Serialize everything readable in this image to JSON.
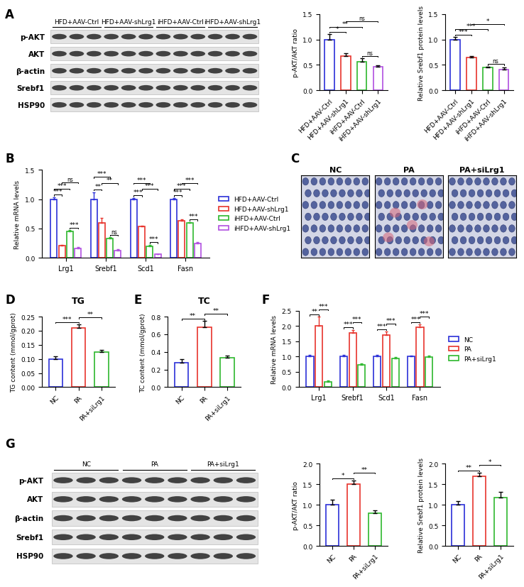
{
  "panel_labels": [
    "A",
    "B",
    "C",
    "D",
    "E",
    "F",
    "G"
  ],
  "blots": [
    {
      "groups": [
        "HFD+AAV-Ctrl",
        "HFD+AAV-shLrg1",
        "iHFD+AAV-Ctrl",
        "iHFD+AAV-shLrg1"
      ],
      "lanes_per_group": 3,
      "rows": [
        "p-AKT",
        "AKT",
        "β-actin",
        "Srebf1",
        "HSP90"
      ]
    },
    {
      "groups": [
        "NC",
        "PA",
        "PA+siLrg1"
      ],
      "lanes_per_group": 3,
      "rows": [
        "p-AKT",
        "AKT",
        "β-actin",
        "Srebf1",
        "HSP90"
      ]
    }
  ],
  "images": {
    "labels": [
      "NC",
      "PA",
      "PA+siLrg1"
    ]
  },
  "chart_data": [
    {
      "type": "bar",
      "ylabel": "p-AKT/AKT ratio",
      "categories": [
        "HFD+AAV-Ctrl",
        "HFD+AAV-shLrg1",
        "iHFD+AAV-Ctrl",
        "iHFD+AAV-shLrg1"
      ],
      "values": [
        1.0,
        0.68,
        0.56,
        0.46
      ],
      "errors": [
        0.1,
        0.05,
        0.07,
        0.03
      ],
      "colors": [
        "#2b30d8",
        "#e8342c",
        "#2eb82e",
        "#b04fe0"
      ],
      "ylim": [
        0.0,
        1.5
      ],
      "yticks": [
        0.0,
        0.5,
        1.0,
        1.5
      ],
      "annotations": [
        {
          "from": 0,
          "to": 1,
          "text": "*"
        },
        {
          "from": 0,
          "to": 2,
          "text": "**"
        },
        {
          "from": 1,
          "to": 3,
          "text": "ns"
        },
        {
          "from": 2,
          "to": 3,
          "text": "ns"
        }
      ]
    },
    {
      "type": "bar",
      "ylabel": "Relative Srebf1 protein levels",
      "categories": [
        "HFD+AAV-Ctrl",
        "HFD+AAV-shLrg1",
        "iHFD+AAV-Ctrl",
        "iHFD+AAV-shLrg1"
      ],
      "values": [
        1.0,
        0.64,
        0.45,
        0.41
      ],
      "errors": [
        0.05,
        0.03,
        0.02,
        0.04
      ],
      "colors": [
        "#2b30d8",
        "#e8342c",
        "#2eb82e",
        "#b04fe0"
      ],
      "ylim": [
        0.0,
        1.5
      ],
      "yticks": [
        0.0,
        0.5,
        1.0,
        1.5
      ],
      "annotations": [
        {
          "from": 0,
          "to": 1,
          "text": "***"
        },
        {
          "from": 0,
          "to": 2,
          "text": "***"
        },
        {
          "from": 1,
          "to": 3,
          "text": "*"
        },
        {
          "from": 2,
          "to": 3,
          "text": "ns"
        }
      ]
    },
    {
      "type": "bar",
      "ylabel": "Relative mRNA levels",
      "categories": [
        "Lrg1",
        "Srebf1",
        "Scd1",
        "Fasn"
      ],
      "series": [
        {
          "name": "HFD+AAV-Ctrl",
          "color": "#2b30d8",
          "values": [
            1.0,
            1.0,
            1.0,
            1.0
          ],
          "errors": [
            0.03,
            0.12,
            0.02,
            0.02
          ]
        },
        {
          "name": "HFD+AAV-shLrg1",
          "color": "#e8342c",
          "values": [
            0.21,
            0.6,
            0.53,
            0.63
          ],
          "errors": [
            0.01,
            0.08,
            0.02,
            0.03
          ]
        },
        {
          "name": "iHFD+AAV-Ctrl",
          "color": "#2eb82e",
          "values": [
            0.45,
            0.33,
            0.2,
            0.59
          ],
          "errors": [
            0.02,
            0.02,
            0.02,
            0.02
          ]
        },
        {
          "name": "iHFD+AAV-shLrg1",
          "color": "#b04fe0",
          "values": [
            0.16,
            0.13,
            0.06,
            0.25
          ],
          "errors": [
            0.02,
            0.02,
            0.01,
            0.02
          ]
        }
      ],
      "legend": "center left",
      "ylim": [
        0.0,
        1.5
      ],
      "yticks": [
        0.0,
        0.5,
        1.0,
        1.5
      ],
      "annotations": [
        {
          "category": 0,
          "from": 0,
          "to": 1,
          "text": "***"
        },
        {
          "category": 0,
          "from": 0,
          "to": 2,
          "text": "***"
        },
        {
          "category": 0,
          "from": 1,
          "to": 3,
          "text": "ns"
        },
        {
          "category": 0,
          "from": 2,
          "to": 3,
          "text": "***"
        },
        {
          "category": 1,
          "from": 0,
          "to": 1,
          "text": "**"
        },
        {
          "category": 1,
          "from": 0,
          "to": 2,
          "text": "***"
        },
        {
          "category": 1,
          "from": 1,
          "to": 3,
          "text": "**"
        },
        {
          "category": 1,
          "from": 2,
          "to": 3,
          "text": "ns"
        },
        {
          "category": 2,
          "from": 0,
          "to": 1,
          "text": "***"
        },
        {
          "category": 2,
          "from": 0,
          "to": 2,
          "text": "***"
        },
        {
          "category": 2,
          "from": 1,
          "to": 3,
          "text": "***"
        },
        {
          "category": 2,
          "from": 2,
          "to": 3,
          "text": "***"
        },
        {
          "category": 3,
          "from": 0,
          "to": 1,
          "text": "***"
        },
        {
          "category": 3,
          "from": 0,
          "to": 2,
          "text": "***"
        },
        {
          "category": 3,
          "from": 1,
          "to": 3,
          "text": "***"
        },
        {
          "category": 3,
          "from": 2,
          "to": 3,
          "text": "***"
        }
      ]
    },
    {
      "type": "bar",
      "title": "TG",
      "ylabel": "TG content (mmol/gprot)",
      "categories": [
        "NC",
        "PA",
        "PA+siLrg1"
      ],
      "values": [
        0.1,
        0.21,
        0.125
      ],
      "errors": [
        0.01,
        0.012,
        0.008
      ],
      "colors": [
        "#2b30d8",
        "#e8342c",
        "#2eb82e"
      ],
      "ylim": [
        0.0,
        0.25
      ],
      "yticks": [
        {
          "value": 0.0,
          "label": "0.00"
        },
        0.05,
        {
          "value": 0.1,
          "label": "0.10"
        },
        0.15,
        {
          "value": 0.2,
          "label": "0.20"
        },
        0.25
      ],
      "annotations": [
        {
          "from": 0,
          "to": 1,
          "text": "***"
        },
        {
          "from": 1,
          "to": 2,
          "text": "**"
        }
      ]
    },
    {
      "type": "bar",
      "title": "TC",
      "ylabel": "TC content (mmol/gprot)",
      "categories": [
        "NC",
        "PA",
        "PA+siLrg1"
      ],
      "values": [
        0.28,
        0.68,
        0.33
      ],
      "errors": [
        0.04,
        0.07,
        0.03
      ],
      "colors": [
        "#2b30d8",
        "#e8342c",
        "#2eb82e"
      ],
      "ylim": [
        0.0,
        0.8
      ],
      "yticks": [
        0.0,
        0.2,
        0.4,
        0.6,
        0.8
      ],
      "annotations": [
        {
          "from": 0,
          "to": 1,
          "text": "**"
        },
        {
          "from": 1,
          "to": 2,
          "text": "**"
        }
      ]
    },
    {
      "type": "bar",
      "ylabel": "Relative mRNA levels",
      "categories": [
        "Lrg1",
        "Srebf1",
        "Scd1",
        "Fasn"
      ],
      "series": [
        {
          "name": "NC",
          "color": "#2b30d8",
          "values": [
            1.0,
            1.0,
            1.0,
            1.0
          ],
          "errors": [
            0.05,
            0.06,
            0.05,
            0.04
          ]
        },
        {
          "name": "PA",
          "color": "#e8342c",
          "values": [
            2.0,
            1.78,
            1.7,
            1.97
          ],
          "errors": [
            0.3,
            0.1,
            0.12,
            0.08
          ]
        },
        {
          "name": "PA+siLrg1",
          "color": "#2eb82e",
          "values": [
            0.18,
            0.73,
            0.95,
            0.98
          ],
          "errors": [
            0.03,
            0.05,
            0.04,
            0.05
          ]
        }
      ],
      "legend": "center left",
      "ylim": [
        0.0,
        2.5
      ],
      "yticks": [
        0.0,
        0.5,
        1.0,
        1.5,
        2.0,
        2.5
      ],
      "annotations": [
        {
          "category": 0,
          "from": 0,
          "to": 1,
          "text": "**"
        },
        {
          "category": 0,
          "from": 1,
          "to": 2,
          "text": "***"
        },
        {
          "category": 1,
          "from": 0,
          "to": 1,
          "text": "***"
        },
        {
          "category": 1,
          "from": 1,
          "to": 2,
          "text": "***"
        },
        {
          "category": 2,
          "from": 0,
          "to": 1,
          "text": "***"
        },
        {
          "category": 2,
          "from": 1,
          "to": 2,
          "text": "***"
        },
        {
          "category": 3,
          "from": 0,
          "to": 1,
          "text": "***"
        },
        {
          "category": 3,
          "from": 1,
          "to": 2,
          "text": "***"
        }
      ]
    },
    {
      "type": "bar",
      "ylabel": "p-AKT/AKT ratio",
      "categories": [
        "NC",
        "PA",
        "PA+siLrg1"
      ],
      "values": [
        1.0,
        1.5,
        0.8
      ],
      "errors": [
        0.13,
        0.08,
        0.07
      ],
      "colors": [
        "#2b30d8",
        "#e8342c",
        "#2eb82e"
      ],
      "ylim": [
        0.0,
        2.0
      ],
      "yticks": [
        0.0,
        0.5,
        1.0,
        1.5,
        2.0
      ],
      "annotations": [
        {
          "from": 0,
          "to": 1,
          "text": "*"
        },
        {
          "from": 1,
          "to": 2,
          "text": "**"
        }
      ]
    },
    {
      "type": "bar",
      "ylabel": "Relative Srebf1 protein levels",
      "categories": [
        "NC",
        "PA",
        "PA+siLrg1"
      ],
      "values": [
        1.0,
        1.7,
        1.18
      ],
      "errors": [
        0.08,
        0.07,
        0.14
      ],
      "colors": [
        "#2b30d8",
        "#e8342c",
        "#2eb82e"
      ],
      "ylim": [
        0.0,
        2.0
      ],
      "yticks": [
        0.0,
        0.5,
        1.0,
        1.5,
        2.0
      ],
      "annotations": [
        {
          "from": 0,
          "to": 1,
          "text": "**"
        },
        {
          "from": 1,
          "to": 2,
          "text": "*"
        }
      ]
    }
  ]
}
